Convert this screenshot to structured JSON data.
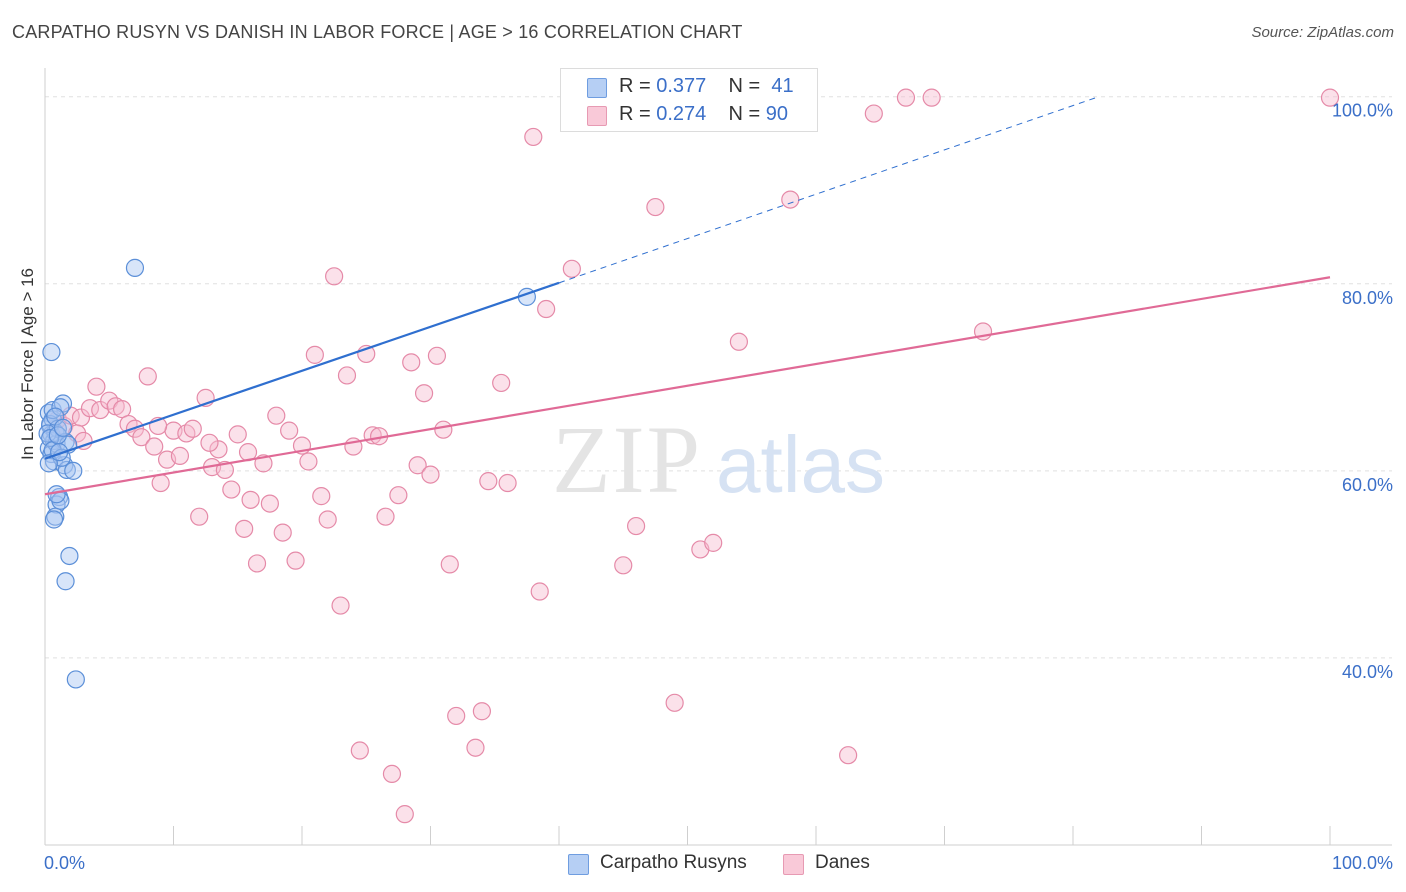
{
  "title": "CARPATHO RUSYN VS DANISH IN LABOR FORCE | AGE > 16 CORRELATION CHART",
  "source": "Source: ZipAtlas.com",
  "watermark": {
    "zip": "ZIP",
    "atlas": "atlas"
  },
  "legend": {
    "rows": [
      {
        "r_label": "R = ",
        "r_value": "0.377",
        "n_label": "N = ",
        "n_value": "41"
      },
      {
        "r_label": "R = ",
        "r_value": "0.274",
        "n_label": "N = ",
        "n_value": "90"
      }
    ]
  },
  "colors": {
    "blue_fill": "#a9c6f2",
    "blue_stroke": "#5b8fd8",
    "blue_line": "#2f6fcf",
    "pink_fill": "#f7bdd0",
    "pink_stroke": "#e58aa8",
    "pink_line": "#e06a96",
    "grid": "#e0e0e0",
    "tick_label": "#3b6fc8"
  },
  "chart_data": {
    "type": "scatter",
    "title": "CARPATHO RUSYN VS DANISH IN LABOR FORCE | AGE > 16 CORRELATION CHART",
    "xlabel": "",
    "ylabel": "In Labor Force | Age > 16",
    "xlim": [
      0,
      100
    ],
    "ylim": [
      20,
      102
    ],
    "x_tick_labels": [
      "0.0%",
      "100.0%"
    ],
    "y_ticks": [
      40,
      60,
      80,
      100
    ],
    "y_tick_labels": [
      "40.0%",
      "60.0%",
      "80.0%",
      "100.0%"
    ],
    "legend_position": "bottom-center",
    "series": [
      {
        "name": "Carpatho Rusyns",
        "r": 0.377,
        "n": 41,
        "trend": {
          "x0": 0,
          "y0": 61.3,
          "x1": 40,
          "y1": 80.1,
          "dash_x1": 82,
          "dash_y1": 100
        },
        "points": [
          [
            0.3,
            66.2
          ],
          [
            0.4,
            64.8
          ],
          [
            0.5,
            63.9
          ],
          [
            0.6,
            65.5
          ],
          [
            0.3,
            62.4
          ],
          [
            0.5,
            61.8
          ],
          [
            0.7,
            63.2
          ],
          [
            0.8,
            64.1
          ],
          [
            0.4,
            65.0
          ],
          [
            0.6,
            66.5
          ],
          [
            0.9,
            62.9
          ],
          [
            1.0,
            64.5
          ],
          [
            0.5,
            72.7
          ],
          [
            1.4,
            67.2
          ],
          [
            1.2,
            66.8
          ],
          [
            1.6,
            63.1
          ],
          [
            1.8,
            62.8
          ],
          [
            0.7,
            61.0
          ],
          [
            1.5,
            60.6
          ],
          [
            1.7,
            60.1
          ],
          [
            2.2,
            60.0
          ],
          [
            1.1,
            57.2
          ],
          [
            0.9,
            56.4
          ],
          [
            1.2,
            56.8
          ],
          [
            0.8,
            55.1
          ],
          [
            0.7,
            54.8
          ],
          [
            1.9,
            50.9
          ],
          [
            1.6,
            48.2
          ],
          [
            2.4,
            37.7
          ],
          [
            7.0,
            81.7
          ],
          [
            37.5,
            78.6
          ],
          [
            0.2,
            64.0
          ],
          [
            0.4,
            63.5
          ],
          [
            0.6,
            62.2
          ],
          [
            1.3,
            61.4
          ],
          [
            0.8,
            65.8
          ],
          [
            1.0,
            63.8
          ],
          [
            0.3,
            60.8
          ],
          [
            1.4,
            64.6
          ],
          [
            0.9,
            57.5
          ],
          [
            1.1,
            62.0
          ]
        ]
      },
      {
        "name": "Danes",
        "r": 0.274,
        "n": 90,
        "trend": {
          "x0": 0,
          "y0": 57.5,
          "x1": 100,
          "y1": 80.7
        },
        "points": [
          [
            1.0,
            65.5
          ],
          [
            1.5,
            64.8
          ],
          [
            2.0,
            65.9
          ],
          [
            2.8,
            65.7
          ],
          [
            3.5,
            66.7
          ],
          [
            4.0,
            69.0
          ],
          [
            4.3,
            66.5
          ],
          [
            5.0,
            67.5
          ],
          [
            5.5,
            66.9
          ],
          [
            6.0,
            66.6
          ],
          [
            6.5,
            65.0
          ],
          [
            7.0,
            64.5
          ],
          [
            7.5,
            63.6
          ],
          [
            8.0,
            70.1
          ],
          [
            8.5,
            62.6
          ],
          [
            9.0,
            58.7
          ],
          [
            9.5,
            61.2
          ],
          [
            10.0,
            64.3
          ],
          [
            10.5,
            61.6
          ],
          [
            11.0,
            64.0
          ],
          [
            11.5,
            64.5
          ],
          [
            12.0,
            55.1
          ],
          [
            12.5,
            67.8
          ],
          [
            13.0,
            60.4
          ],
          [
            13.5,
            62.3
          ],
          [
            14.0,
            60.1
          ],
          [
            14.5,
            58.0
          ],
          [
            15.0,
            63.9
          ],
          [
            15.5,
            53.8
          ],
          [
            16.0,
            56.9
          ],
          [
            16.5,
            50.1
          ],
          [
            17.0,
            60.8
          ],
          [
            17.5,
            56.5
          ],
          [
            18.0,
            65.9
          ],
          [
            18.5,
            53.4
          ],
          [
            19.0,
            64.3
          ],
          [
            19.5,
            50.4
          ],
          [
            20.0,
            62.7
          ],
          [
            20.5,
            61.0
          ],
          [
            21.0,
            72.4
          ],
          [
            21.5,
            57.3
          ],
          [
            22.0,
            54.8
          ],
          [
            22.5,
            80.8
          ],
          [
            23.0,
            45.6
          ],
          [
            23.5,
            70.2
          ],
          [
            24.0,
            62.6
          ],
          [
            25.0,
            72.5
          ],
          [
            25.5,
            63.8
          ],
          [
            26.0,
            63.7
          ],
          [
            26.5,
            55.1
          ],
          [
            27.0,
            27.6
          ],
          [
            27.5,
            57.4
          ],
          [
            28.0,
            23.3
          ],
          [
            28.5,
            71.6
          ],
          [
            29.0,
            60.6
          ],
          [
            29.5,
            68.3
          ],
          [
            30.0,
            59.6
          ],
          [
            30.5,
            72.3
          ],
          [
            31.0,
            64.4
          ],
          [
            31.5,
            50.0
          ],
          [
            32.0,
            33.8
          ],
          [
            24.5,
            30.1
          ],
          [
            33.5,
            30.4
          ],
          [
            34.0,
            34.3
          ],
          [
            34.5,
            58.9
          ],
          [
            35.5,
            69.4
          ],
          [
            36.0,
            58.7
          ],
          [
            38.0,
            95.7
          ],
          [
            38.5,
            47.1
          ],
          [
            39.0,
            77.3
          ],
          [
            41.0,
            81.6
          ],
          [
            45.0,
            49.9
          ],
          [
            46.0,
            54.1
          ],
          [
            47.5,
            88.2
          ],
          [
            49.0,
            35.2
          ],
          [
            51.0,
            51.6
          ],
          [
            52.0,
            52.3
          ],
          [
            54.0,
            73.8
          ],
          [
            58.0,
            89.0
          ],
          [
            62.5,
            29.6
          ],
          [
            64.5,
            98.2
          ],
          [
            67.0,
            99.9
          ],
          [
            69.0,
            99.9
          ],
          [
            73.0,
            74.9
          ],
          [
            100.0,
            99.9
          ],
          [
            2.5,
            64.0
          ],
          [
            3.0,
            63.2
          ],
          [
            8.8,
            64.8
          ],
          [
            12.8,
            63.0
          ],
          [
            15.8,
            62.0
          ]
        ]
      }
    ]
  },
  "bottom_legend": [
    {
      "label": "Carpatho Rusyns"
    },
    {
      "label": "Danes"
    }
  ]
}
